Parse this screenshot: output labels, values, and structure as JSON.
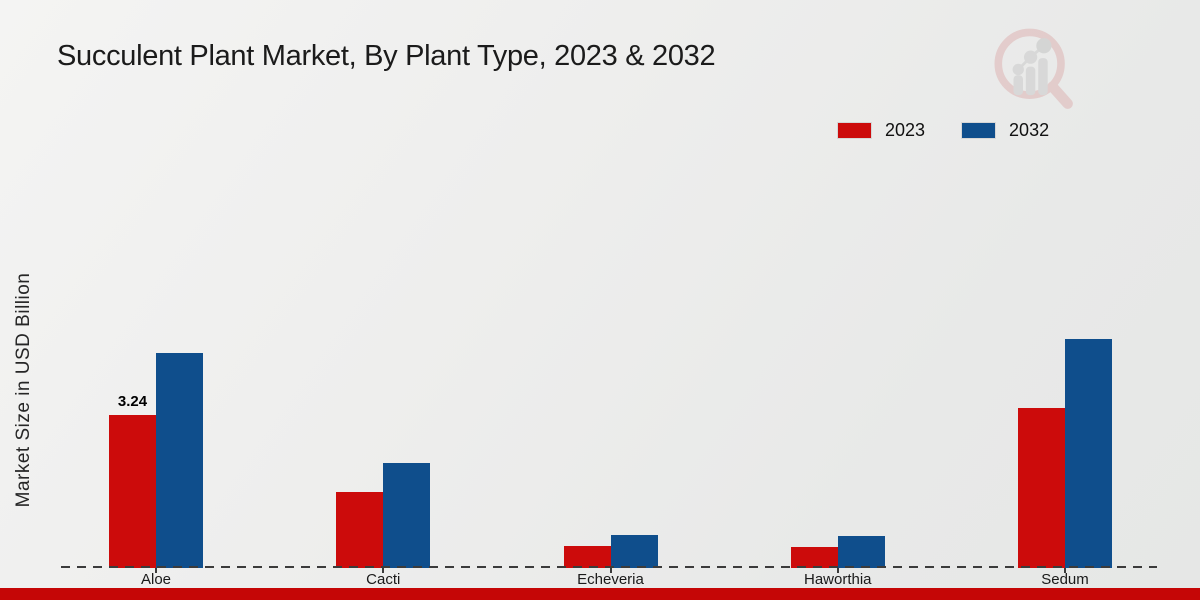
{
  "header": {
    "title": "Succulent Plant Market, By Plant Type, 2023 & 2032"
  },
  "colors": {
    "accent_red": "#cc0b0b",
    "accent_blue": "#0f4e8c",
    "footer_bar": "#c50606",
    "background": "#eaeaea",
    "baseline": "#3b3b3b"
  },
  "watermark_icon": "magnifier-bar-growth-logo",
  "chart_data": {
    "type": "bar",
    "title": "Succulent Plant Market, By Plant Type, 2023 & 2032",
    "xlabel": "",
    "ylabel": "Market Size in USD Billion",
    "categories": [
      "Aloe",
      "Cacti",
      "Echeveria",
      "Haworthia",
      "Sedum"
    ],
    "series": [
      {
        "name": "2023",
        "color": "#cc0b0b",
        "values": [
          3.24,
          1.6,
          0.47,
          0.45,
          3.39
        ]
      },
      {
        "name": "2032",
        "color": "#0f4e8c",
        "values": [
          4.56,
          2.22,
          0.7,
          0.67,
          4.85
        ]
      }
    ],
    "bar_labels": [
      {
        "series": "2023",
        "category": "Aloe",
        "text": "3.24"
      }
    ],
    "ylim": [
      0,
      5.5
    ],
    "grid": false,
    "y_axis_ticks_visible": false,
    "baseline_style": "dashed",
    "legend_position": "top-right"
  }
}
